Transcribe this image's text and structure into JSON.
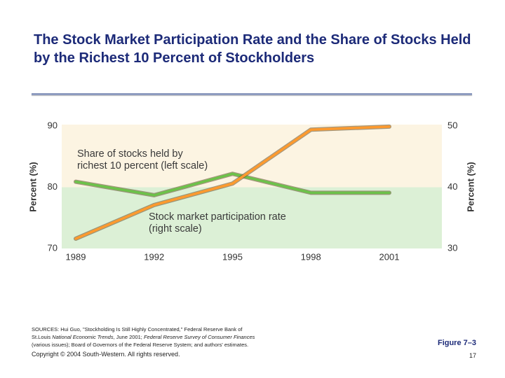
{
  "title": "The Stock Market Participation Rate and the Share of Stocks Held by the Richest 10 Percent of Stockholders",
  "chart_data": {
    "type": "line",
    "categories": [
      "1989",
      "1992",
      "1995",
      "1998",
      "2001"
    ],
    "series": [
      {
        "name": "Share of stocks held by richest 10 percent (left scale)",
        "color": "#6cc24a",
        "values": [
          80.9,
          78.7,
          82.2,
          79.1,
          79.1
        ]
      },
      {
        "name": "Stock market participation rate (right scale)",
        "color": "#ff9a2e",
        "axis": "y2",
        "values": [
          31.6,
          37.1,
          40.6,
          49.4,
          49.9
        ]
      }
    ],
    "annotations": [
      [
        "Share of stocks held by",
        "richest 10 percent (left scale)"
      ],
      [
        "Stock market participation rate",
        "(right scale)"
      ]
    ],
    "ylabel": "Percent (%)",
    "y2label": "Percent (%)",
    "ylim": [
      70,
      90
    ],
    "yticks": [
      70,
      80,
      90
    ],
    "y2lim": [
      30,
      50
    ],
    "y2ticks": [
      30,
      40,
      50
    ]
  },
  "footer": {
    "sources": [
      [
        "SOURCES: Hui Guo, \"Stockholding Is Still Highly Concentrated,\" Federal Reserve Bank of"
      ],
      [
        "St.Louis ",
        {
          "i": "National Economic Trends"
        },
        ", June 2001; ",
        {
          "i": "Federal Reserve Survey of Consumer Finances"
        }
      ],
      [
        "(various issues); Board of Governors of the Federal Reserve System; and authors' estimates."
      ]
    ],
    "copyright": "Copyright © 2004 South-Western. All rights reserved.",
    "figure": "Figure 7–3",
    "page": "17"
  }
}
